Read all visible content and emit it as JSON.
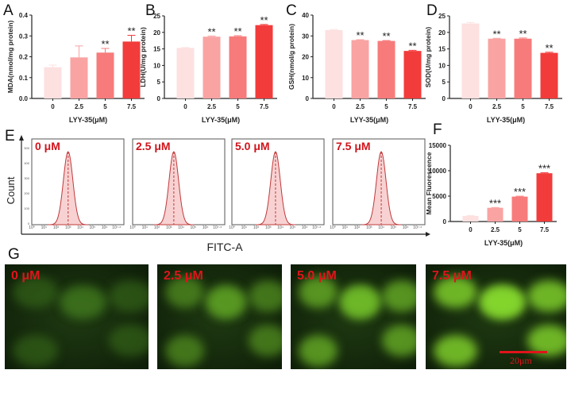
{
  "colors": [
    "#fde0e0",
    "#f9a3a3",
    "#f77b7b",
    "#f23b3b"
  ],
  "chart_data": [
    {
      "id": "A",
      "type": "bar",
      "categories": [
        "0",
        "2.5",
        "5",
        "7.5"
      ],
      "values": [
        0.15,
        0.197,
        0.22,
        0.273
      ],
      "errors": [
        0.01,
        0.055,
        0.02,
        0.03
      ],
      "sig": [
        "",
        "",
        "**",
        "**"
      ],
      "ylabel": "MDA(nmol/mg protein)",
      "xlabel": "LYY-35(μM)",
      "ylim": [
        0,
        0.4
      ],
      "yticks": [
        "0.0",
        "0.1",
        "0.2",
        "0.3",
        "0.4"
      ]
    },
    {
      "id": "B",
      "type": "bar",
      "categories": [
        "0",
        "2.5",
        "5",
        "7.5"
      ],
      "values": [
        15.3,
        18.7,
        18.8,
        22.2
      ],
      "errors": [
        0.1,
        0.2,
        0.2,
        0.2
      ],
      "sig": [
        "",
        "**",
        "**",
        "**"
      ],
      "ylabel": "LDH(U/mg protein)",
      "xlabel": "LYY-35(μM)",
      "ylim": [
        0,
        25
      ],
      "yticks": [
        "0",
        "5",
        "10",
        "15",
        "20",
        "25"
      ]
    },
    {
      "id": "C",
      "type": "bar",
      "categories": [
        "0",
        "2.5",
        "5",
        "7.5"
      ],
      "values": [
        32.8,
        28.0,
        27.6,
        22.8
      ],
      "errors": [
        0.3,
        0.2,
        0.2,
        0.3
      ],
      "sig": [
        "",
        "**",
        "**",
        "**"
      ],
      "ylabel": "GSH(nmol/g protein)",
      "xlabel": "LYY-35(μM)",
      "ylim": [
        0,
        40
      ],
      "yticks": [
        "0",
        "10",
        "20",
        "30",
        "40"
      ]
    },
    {
      "id": "D",
      "type": "bar",
      "categories": [
        "0",
        "2.5",
        "5",
        "7.5"
      ],
      "values": [
        22.7,
        18.1,
        18.1,
        13.8
      ],
      "errors": [
        0.3,
        0.1,
        0.2,
        0.2
      ],
      "sig": [
        "",
        "**",
        "**",
        "**"
      ],
      "ylabel": "SOD(U/mg protein)",
      "xlabel": "LYY-35(μM)",
      "ylim": [
        0,
        25
      ],
      "yticks": [
        "0",
        "5",
        "10",
        "15",
        "20",
        "25"
      ]
    },
    {
      "id": "F",
      "type": "bar",
      "categories": [
        "0",
        "2.5",
        "5",
        "7.5"
      ],
      "values": [
        1100,
        2700,
        4900,
        9500
      ],
      "errors": [
        50,
        60,
        80,
        100
      ],
      "sig": [
        "",
        "***",
        "***",
        "***"
      ],
      "ylabel": "Mean Fluorescence",
      "xlabel": "LYY-35(μM)",
      "ylim": [
        0,
        15000
      ],
      "yticks": [
        "0",
        "5000",
        "10000",
        "15000"
      ]
    },
    {
      "id": "E",
      "type": "histogram",
      "ylabel": "Count",
      "xlabel": "FITC-A",
      "xticks": [
        "10⁰",
        "10¹",
        "10²",
        "10³",
        "10⁴",
        "10⁵",
        "10⁶",
        "10⁷·⁶"
      ],
      "yticks": [
        "0",
        "100",
        "200",
        "300",
        "400",
        "500"
      ],
      "panels": [
        {
          "label": "0 μM",
          "peak_log": 3.0
        },
        {
          "label": "2.5 μM",
          "peak_log": 3.4
        },
        {
          "label": "5.0 μM",
          "peak_log": 3.6
        },
        {
          "label": "7.5 μM",
          "peak_log": 4.0
        }
      ]
    }
  ],
  "panel_letters": [
    "A",
    "B",
    "C",
    "D",
    "E",
    "F",
    "G"
  ],
  "images": [
    {
      "label": "0 μM",
      "brightness": 0.15
    },
    {
      "label": "2.5 μM",
      "brightness": 0.45
    },
    {
      "label": "5.0 μM",
      "brightness": 0.65
    },
    {
      "label": "7.5 μM",
      "brightness": 0.85
    }
  ],
  "scale_bar": "20μm"
}
